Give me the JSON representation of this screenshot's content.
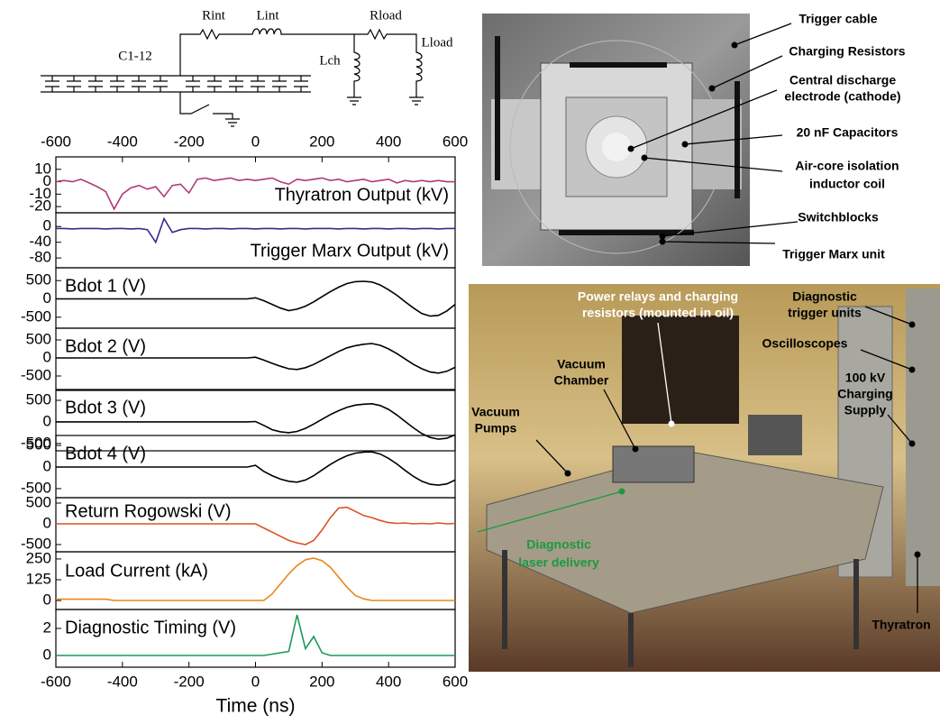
{
  "circuit": {
    "labels": [
      "Rint",
      "Lint",
      "Rload",
      "Lload",
      "Lch",
      "C1-12"
    ]
  },
  "chart_data": [
    {
      "type": "line",
      "xlim": [
        -600,
        600
      ],
      "xticks": [
        -600,
        -400,
        -200,
        0,
        200,
        400,
        600
      ],
      "ylim": [
        -25,
        20
      ],
      "yticks": [
        10,
        0,
        -10,
        -20
      ],
      "x": [
        -600,
        -575,
        -550,
        -525,
        -500,
        -475,
        -450,
        -425,
        -400,
        -375,
        -350,
        -325,
        -300,
        -275,
        -250,
        -225,
        -200,
        -175,
        -150,
        -125,
        -100,
        -75,
        -50,
        -25,
        0,
        25,
        50,
        75,
        100,
        125,
        150,
        175,
        200,
        225,
        250,
        275,
        300,
        325,
        350,
        375,
        400,
        425,
        450,
        475,
        500,
        525,
        550,
        575,
        600
      ],
      "series": [
        {
          "name": "Thyratron Output (kV)",
          "color": "#b03a78",
          "values": [
            0,
            1,
            0,
            2,
            -1,
            -4,
            -8,
            -22,
            -10,
            -5,
            -3,
            -6,
            -4,
            -12,
            -3,
            -2,
            -9,
            2,
            3,
            1,
            2,
            3,
            1,
            2,
            1,
            2,
            3,
            0,
            -2,
            2,
            1,
            2,
            3,
            1,
            2,
            0,
            1,
            2,
            0,
            1,
            2,
            -1,
            1,
            0,
            1,
            0,
            1,
            0,
            0
          ]
        }
      ]
    },
    {
      "type": "line",
      "xlim": [
        -600,
        600
      ],
      "ylim": [
        -105,
        35
      ],
      "yticks": [
        0,
        -40,
        -80
      ],
      "x": [
        -600,
        -575,
        -550,
        -525,
        -500,
        -475,
        -450,
        -425,
        -400,
        -375,
        -350,
        -325,
        -300,
        -275,
        -250,
        -225,
        -200,
        -175,
        -150,
        -125,
        -100,
        -75,
        -50,
        -25,
        0,
        25,
        50,
        75,
        100,
        125,
        150,
        175,
        200,
        225,
        250,
        275,
        300,
        325,
        350,
        375,
        400,
        425,
        450,
        475,
        500,
        525,
        550,
        575,
        600
      ],
      "series": [
        {
          "name": "Trigger Marx Output (kV)",
          "color": "#3a2a8a",
          "values": [
            -5,
            -5,
            -6,
            -5,
            -5,
            -5,
            -6,
            -5,
            -5,
            -6,
            -5,
            -8,
            -40,
            20,
            -15,
            -8,
            -5,
            -5,
            -6,
            -5,
            -5,
            -6,
            -5,
            -5,
            -6,
            -5,
            -5,
            -6,
            -5,
            -5,
            -6,
            -5,
            -5,
            -5,
            -6,
            -5,
            -5,
            -6,
            -5,
            -5,
            -6,
            -5,
            -5,
            -6,
            -5,
            -5,
            -6,
            -5,
            -5
          ]
        }
      ]
    },
    {
      "type": "line",
      "xlim": [
        -600,
        600
      ],
      "ylim": [
        -800,
        850
      ],
      "yticks": [
        500,
        0,
        -500
      ],
      "x": [
        -600,
        -575,
        -550,
        -525,
        -500,
        -475,
        -450,
        -425,
        -400,
        -375,
        -350,
        -325,
        -300,
        -275,
        -250,
        -225,
        -200,
        -175,
        -150,
        -125,
        -100,
        -75,
        -50,
        -25,
        0,
        25,
        50,
        75,
        100,
        125,
        150,
        175,
        200,
        225,
        250,
        275,
        300,
        325,
        350,
        375,
        400,
        425,
        450,
        475,
        500,
        525,
        550,
        575,
        600
      ],
      "series": [
        {
          "name": "Bdot 1 (V)",
          "color": "#000000",
          "values": [
            0,
            0,
            0,
            0,
            0,
            0,
            0,
            0,
            0,
            0,
            0,
            0,
            0,
            0,
            0,
            0,
            0,
            0,
            0,
            0,
            0,
            0,
            0,
            0,
            30,
            -50,
            -150,
            -250,
            -320,
            -280,
            -200,
            -80,
            60,
            200,
            320,
            420,
            470,
            480,
            460,
            380,
            250,
            100,
            -80,
            -250,
            -400,
            -470,
            -450,
            -330,
            -150
          ]
        }
      ]
    },
    {
      "type": "line",
      "xlim": [
        -600,
        600
      ],
      "ylim": [
        -875,
        825
      ],
      "yticks": [
        500,
        0,
        -500
      ],
      "x": [
        -600,
        -575,
        -550,
        -525,
        -500,
        -475,
        -450,
        -425,
        -400,
        -375,
        -350,
        -325,
        -300,
        -275,
        -250,
        -225,
        -200,
        -175,
        -150,
        -125,
        -100,
        -75,
        -50,
        -25,
        0,
        25,
        50,
        75,
        100,
        125,
        150,
        175,
        200,
        225,
        250,
        275,
        300,
        325,
        350,
        375,
        400,
        425,
        450,
        475,
        500,
        525,
        550,
        575,
        600
      ],
      "series": [
        {
          "name": "Bdot 2 (V)",
          "color": "#000000",
          "values": [
            0,
            0,
            0,
            0,
            0,
            0,
            0,
            0,
            0,
            0,
            0,
            0,
            0,
            0,
            0,
            0,
            0,
            0,
            0,
            0,
            0,
            0,
            0,
            0,
            20,
            -60,
            -150,
            -230,
            -300,
            -320,
            -270,
            -180,
            -60,
            60,
            180,
            280,
            340,
            380,
            400,
            350,
            250,
            120,
            -30,
            -180,
            -300,
            -390,
            -420,
            -370,
            -260
          ]
        }
      ]
    },
    {
      "type": "line",
      "xlim": [
        -600,
        600
      ],
      "ylim": [
        -670,
        730
      ],
      "yticks": [
        500,
        0,
        -500
      ],
      "x": [
        -600,
        -575,
        -550,
        -525,
        -500,
        -475,
        -450,
        -425,
        -400,
        -375,
        -350,
        -325,
        -300,
        -275,
        -250,
        -225,
        -200,
        -175,
        -150,
        -125,
        -100,
        -75,
        -50,
        -25,
        0,
        25,
        50,
        75,
        100,
        125,
        150,
        175,
        200,
        225,
        250,
        275,
        300,
        325,
        350,
        375,
        400,
        425,
        450,
        475,
        500,
        525,
        550,
        575,
        600
      ],
      "series": [
        {
          "name": "Bdot 3 (V)",
          "color": "#000000",
          "values": [
            0,
            0,
            0,
            0,
            0,
            0,
            0,
            0,
            0,
            0,
            0,
            0,
            0,
            0,
            0,
            0,
            0,
            0,
            0,
            0,
            0,
            0,
            0,
            0,
            10,
            -80,
            -180,
            -230,
            -250,
            -220,
            -150,
            -50,
            60,
            170,
            260,
            340,
            390,
            410,
            420,
            380,
            290,
            160,
            10,
            -140,
            -270,
            -360,
            -400,
            -380,
            -300
          ]
        }
      ]
    },
    {
      "type": "line",
      "xlim": [
        -600,
        600
      ],
      "ylim": [
        -710,
        730
      ],
      "yticks": [
        500,
        0,
        -500
      ],
      "x": [
        -600,
        -575,
        -550,
        -525,
        -500,
        -475,
        -450,
        -425,
        -400,
        -375,
        -350,
        -325,
        -300,
        -275,
        -250,
        -225,
        -200,
        -175,
        -150,
        -125,
        -100,
        -75,
        -50,
        -25,
        0,
        25,
        50,
        75,
        100,
        125,
        150,
        175,
        200,
        225,
        250,
        275,
        300,
        325,
        350,
        375,
        400,
        425,
        450,
        475,
        500,
        525,
        550,
        575,
        600
      ],
      "series": [
        {
          "name": "Bdot 4 (V)",
          "color": "#000000",
          "values": [
            0,
            0,
            0,
            0,
            0,
            0,
            0,
            0,
            0,
            0,
            0,
            0,
            0,
            0,
            0,
            0,
            0,
            0,
            0,
            0,
            0,
            0,
            0,
            0,
            40,
            -100,
            -200,
            -280,
            -330,
            -350,
            -300,
            -200,
            -70,
            60,
            170,
            260,
            320,
            345,
            350,
            300,
            200,
            70,
            -80,
            -220,
            -330,
            -400,
            -420,
            -390,
            -300
          ]
        }
      ]
    },
    {
      "type": "line",
      "xlim": [
        -600,
        600
      ],
      "ylim": [
        -675,
        630
      ],
      "yticks": [
        500,
        0,
        -500
      ],
      "x": [
        -600,
        -575,
        -550,
        -525,
        -500,
        -475,
        -450,
        -425,
        -400,
        -375,
        -350,
        -325,
        -300,
        -275,
        -250,
        -225,
        -200,
        -175,
        -150,
        -125,
        -100,
        -75,
        -50,
        -25,
        0,
        25,
        50,
        75,
        100,
        125,
        150,
        175,
        200,
        225,
        250,
        275,
        300,
        325,
        350,
        375,
        400,
        425,
        450,
        475,
        500,
        525,
        550,
        575,
        600
      ],
      "series": [
        {
          "name": "Return Rogowski (V)",
          "color": "#d9531e",
          "values": [
            0,
            0,
            0,
            0,
            0,
            0,
            0,
            0,
            0,
            0,
            0,
            0,
            0,
            0,
            0,
            0,
            0,
            0,
            0,
            0,
            0,
            0,
            0,
            0,
            0,
            -100,
            -200,
            -300,
            -400,
            -460,
            -500,
            -400,
            -150,
            150,
            380,
            400,
            300,
            200,
            150,
            80,
            30,
            10,
            20,
            0,
            10,
            0,
            20,
            0,
            10
          ]
        }
      ]
    },
    {
      "type": "line",
      "xlim": [
        -600,
        600
      ],
      "ylim": [
        -54,
        293
      ],
      "yticks": [
        250,
        125,
        0
      ],
      "x": [
        -600,
        -575,
        -550,
        -525,
        -500,
        -475,
        -450,
        -425,
        -400,
        -375,
        -350,
        -325,
        -300,
        -275,
        -250,
        -225,
        -200,
        -175,
        -150,
        -125,
        -100,
        -75,
        -50,
        -25,
        0,
        25,
        50,
        75,
        100,
        125,
        150,
        175,
        200,
        225,
        250,
        275,
        300,
        325,
        350,
        375,
        400,
        425,
        450,
        475,
        500,
        525,
        550,
        575,
        600
      ],
      "series": [
        {
          "name": "Load Current (kA)",
          "color": "#e8871e",
          "values": [
            8,
            8,
            8,
            8,
            8,
            8,
            8,
            0,
            0,
            0,
            0,
            0,
            0,
            0,
            0,
            0,
            0,
            0,
            0,
            0,
            0,
            0,
            0,
            0,
            0,
            0,
            40,
            100,
            160,
            210,
            245,
            255,
            240,
            200,
            140,
            80,
            30,
            10,
            0,
            0,
            0,
            0,
            0,
            0,
            0,
            0,
            0,
            0,
            0
          ]
        }
      ]
    },
    {
      "type": "line",
      "xlim": [
        -600,
        600
      ],
      "xticks": [
        -600,
        -400,
        -200,
        0,
        200,
        400,
        600
      ],
      "xlabel": "Time (ns)",
      "ylim": [
        -0.87,
        3.4
      ],
      "yticks": [
        2,
        0
      ],
      "x": [
        -600,
        -575,
        -550,
        -525,
        -500,
        -475,
        -450,
        -425,
        -400,
        -375,
        -350,
        -325,
        -300,
        -275,
        -250,
        -225,
        -200,
        -175,
        -150,
        -125,
        -100,
        -75,
        -50,
        -25,
        0,
        25,
        50,
        75,
        100,
        125,
        150,
        175,
        200,
        225,
        250,
        275,
        300,
        325,
        350,
        375,
        400,
        425,
        450,
        475,
        500,
        525,
        550,
        575,
        600
      ],
      "series": [
        {
          "name": "Diagnostic Timing (V)",
          "color": "#1a9a5a",
          "values": [
            0,
            0,
            0,
            0,
            0,
            0,
            0,
            0,
            0,
            0,
            0,
            0,
            0,
            0,
            0,
            0,
            0,
            0,
            0,
            0,
            0,
            0,
            0,
            0,
            0,
            0,
            0.1,
            0.2,
            0.3,
            3.0,
            0.5,
            1.4,
            0.2,
            0,
            0,
            0,
            0,
            0,
            0,
            0,
            0,
            0,
            0,
            0,
            0,
            0,
            0,
            0,
            0
          ]
        }
      ]
    }
  ],
  "top_photo": {
    "annotations": [
      {
        "lines": [
          "Trigger cable"
        ]
      },
      {
        "lines": [
          "Charging Resistors"
        ]
      },
      {
        "lines": [
          "Central discharge",
          "electrode (cathode)"
        ]
      },
      {
        "lines": [
          "20 nF Capacitors"
        ]
      },
      {
        "lines": [
          "Air-core isolation",
          "inductor coil"
        ]
      },
      {
        "lines": [
          "Switchblocks"
        ]
      },
      {
        "lines": [
          "Trigger Marx unit"
        ]
      }
    ]
  },
  "bottom_photo": {
    "annotations": [
      {
        "lines": [
          "Power relays and charging",
          "resistors (mounted in oil)"
        ]
      },
      {
        "lines": [
          "Diagnostic",
          "trigger units"
        ]
      },
      {
        "lines": [
          "Oscilloscopes"
        ]
      },
      {
        "lines": [
          "Vacuum",
          "Chamber"
        ]
      },
      {
        "lines": [
          "100 kV",
          "Charging",
          "Supply"
        ]
      },
      {
        "lines": [
          "Vacuum",
          "Pumps"
        ]
      },
      {
        "lines": [
          "Diagnostic",
          "laser delivery"
        ]
      },
      {
        "lines": [
          "Thyratron"
        ]
      }
    ]
  }
}
